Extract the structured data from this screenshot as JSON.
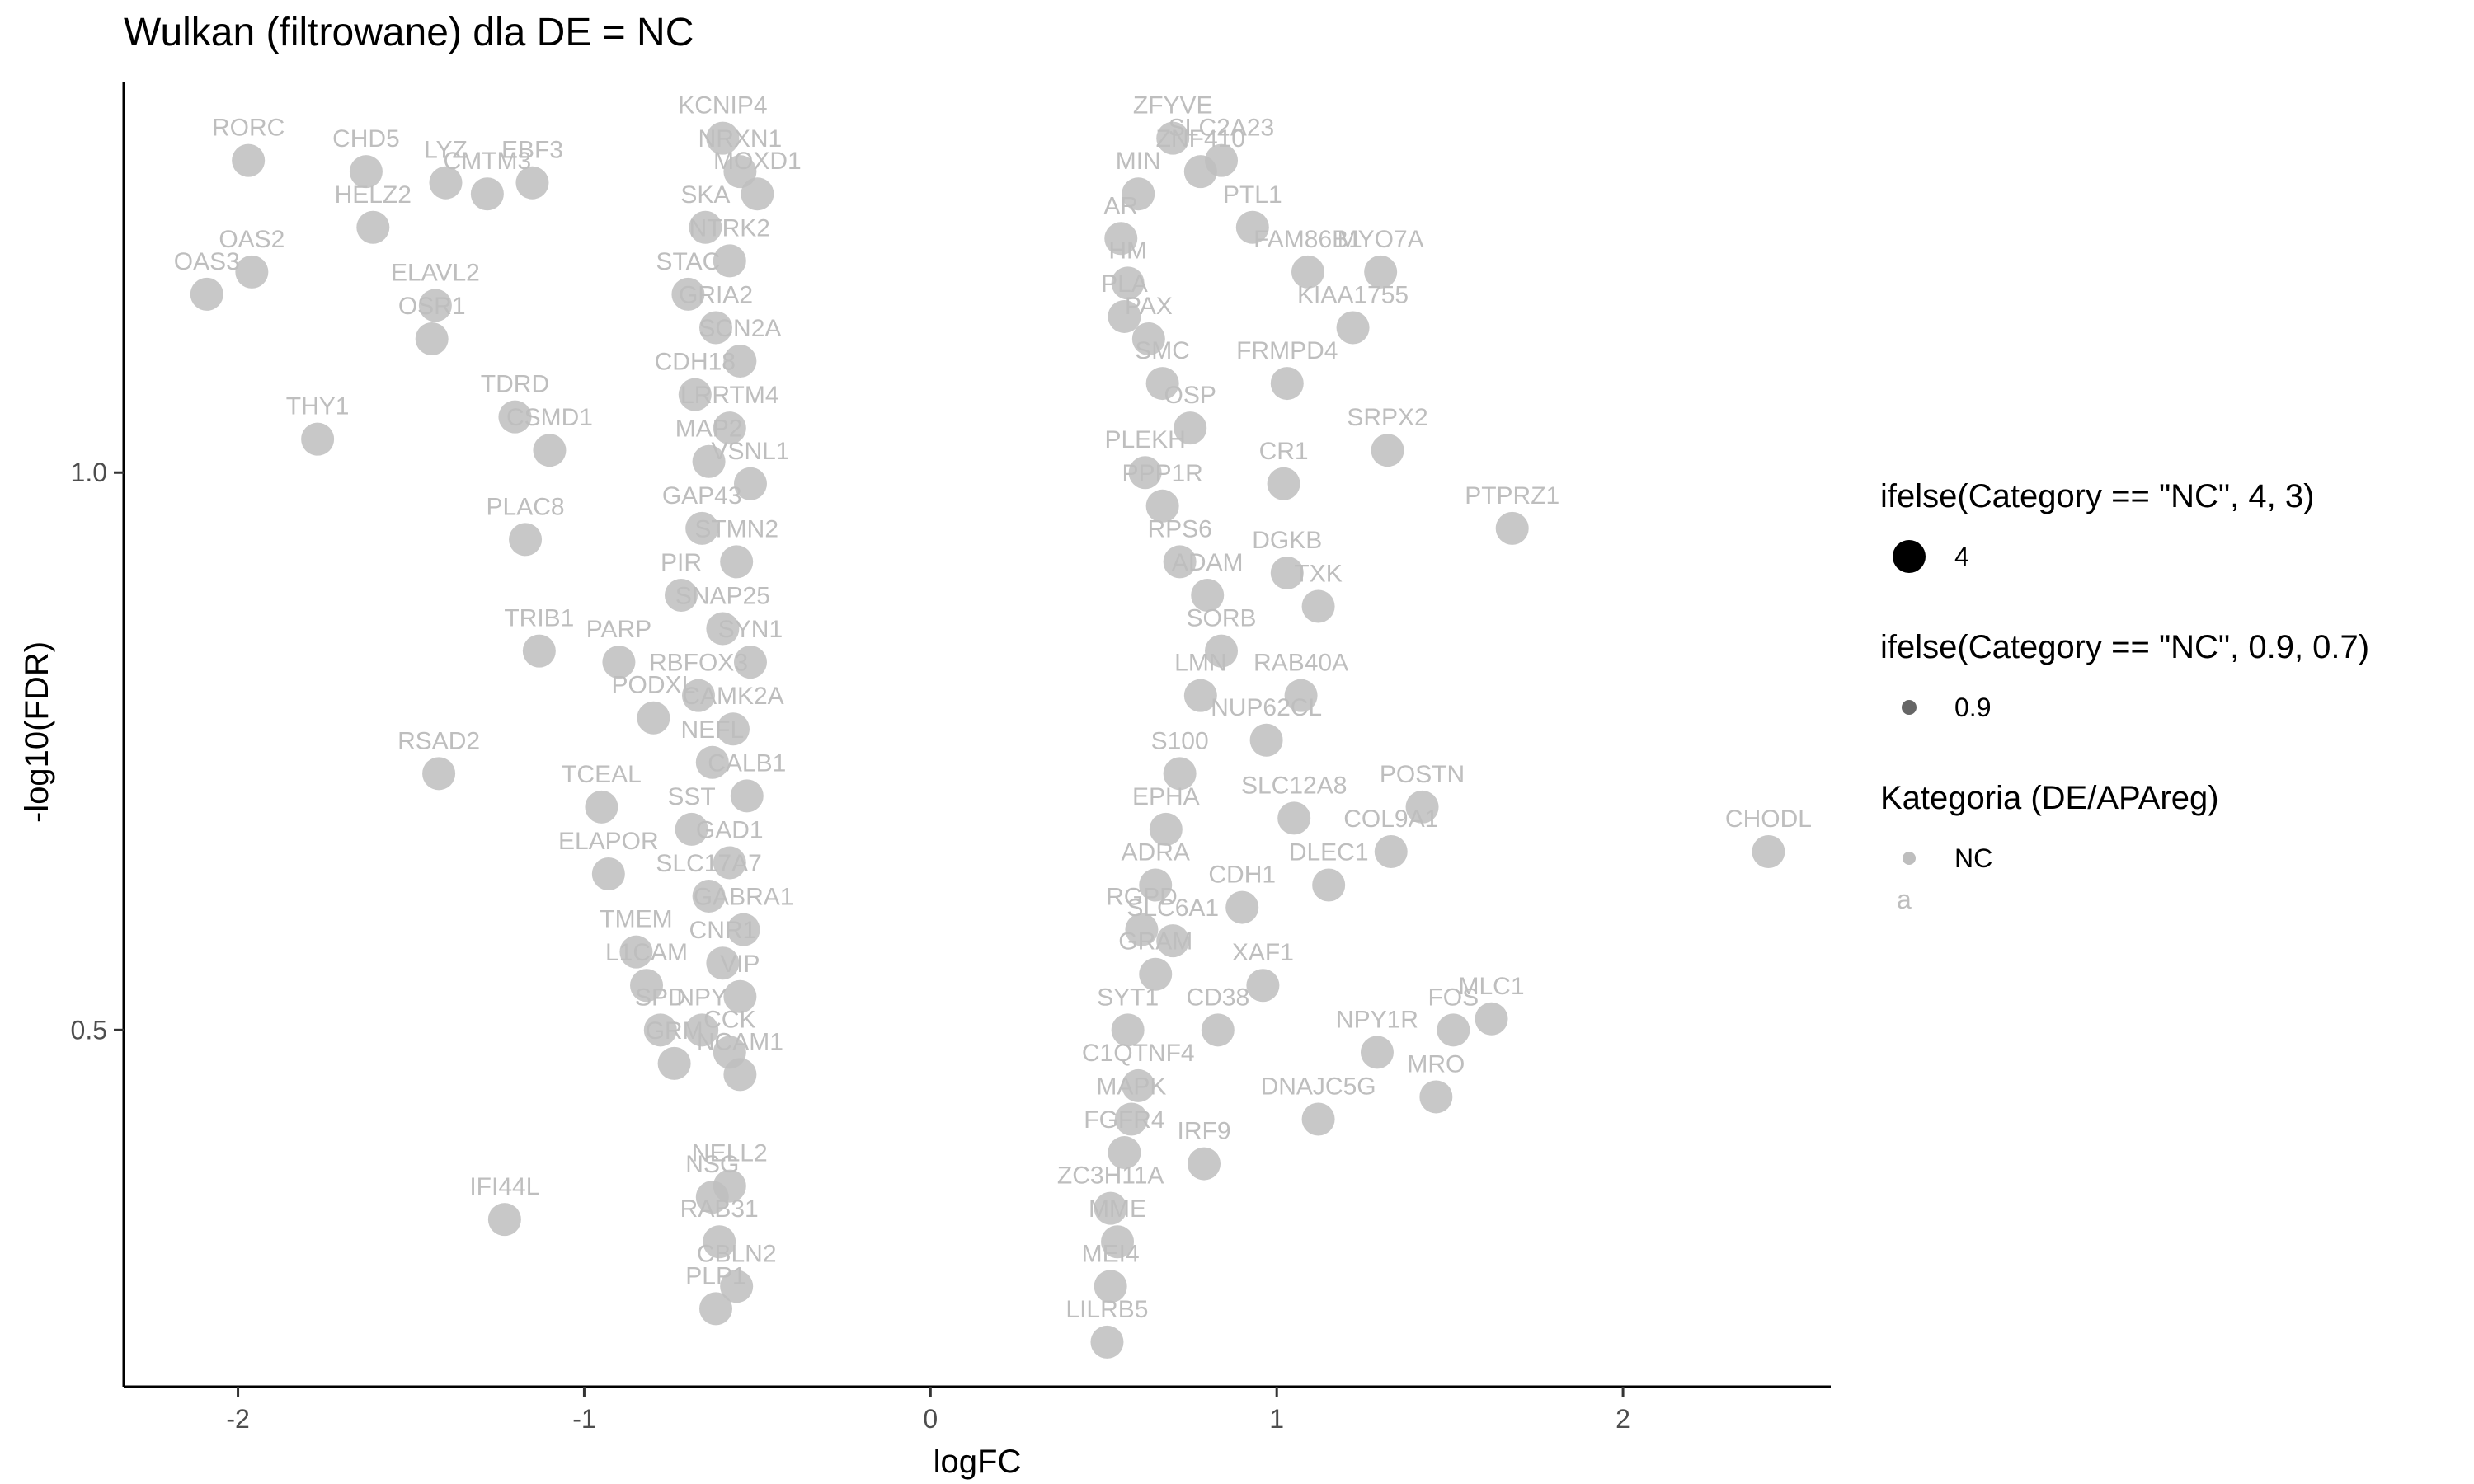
{
  "chart_data": {
    "type": "scatter",
    "title": "Wulkan (filtrowane) dla DE = NC",
    "xlabel": "logFC",
    "ylabel": "-log10(FDR)",
    "xlim": [
      -2.33,
      2.6
    ],
    "ylim": [
      0.18,
      1.35
    ],
    "xticks": [
      -2,
      -1,
      0,
      1,
      2
    ],
    "yticks": [
      0.5,
      1.0
    ],
    "xtick_labels": [
      "-2",
      "-1",
      "0",
      "1",
      "2"
    ],
    "ytick_labels": [
      "0.5",
      "1.0"
    ],
    "grid": false,
    "legend_position": "right",
    "point_color": "#bebebe",
    "points": [
      {
        "x": -1.97,
        "y": 1.28,
        "label": "RORC"
      },
      {
        "x": -1.63,
        "y": 1.27,
        "label": "CHD5"
      },
      {
        "x": -1.4,
        "y": 1.26,
        "label": "LYZ"
      },
      {
        "x": -1.28,
        "y": 1.25,
        "label": "CMTM3"
      },
      {
        "x": -1.61,
        "y": 1.22,
        "label": "HELZ2"
      },
      {
        "x": -1.96,
        "y": 1.18,
        "label": "OAS2"
      },
      {
        "x": -2.09,
        "y": 1.16,
        "label": "OAS3"
      },
      {
        "x": -1.43,
        "y": 1.15,
        "label": "ELAVL2"
      },
      {
        "x": -1.44,
        "y": 1.12,
        "label": "OSR1"
      },
      {
        "x": -1.77,
        "y": 1.03,
        "label": "THY1"
      },
      {
        "x": -1.15,
        "y": 1.26,
        "label": "EBF3"
      },
      {
        "x": -1.2,
        "y": 1.05,
        "label": "TDRD"
      },
      {
        "x": -1.1,
        "y": 1.02,
        "label": "CSMD1"
      },
      {
        "x": -1.17,
        "y": 0.94,
        "label": "PLAC8"
      },
      {
        "x": -1.13,
        "y": 0.84,
        "label": "TRIB1"
      },
      {
        "x": -1.42,
        "y": 0.73,
        "label": "RSAD2"
      },
      {
        "x": -1.23,
        "y": 0.33,
        "label": "IFI44L"
      },
      {
        "x": -0.93,
        "y": 0.64,
        "label": "ELAPOR"
      },
      {
        "x": -0.85,
        "y": 0.57,
        "label": "TMEM"
      },
      {
        "x": -0.74,
        "y": 0.47,
        "label": "GRM"
      },
      {
        "x": -0.63,
        "y": 0.35,
        "label": "NSG"
      },
      {
        "x": -0.61,
        "y": 0.31,
        "label": "RAB31"
      },
      {
        "x": -0.56,
        "y": 0.27,
        "label": "CBLN2"
      },
      {
        "x": -0.62,
        "y": 0.25,
        "label": "PLP1"
      },
      {
        "x": -0.58,
        "y": 0.36,
        "label": "NELL2"
      },
      {
        "x": -0.55,
        "y": 0.46,
        "label": "NCAM1"
      },
      {
        "x": -0.9,
        "y": 0.83,
        "label": "PARP"
      },
      {
        "x": -0.8,
        "y": 0.78,
        "label": "PODXL"
      },
      {
        "x": -0.95,
        "y": 0.7,
        "label": "TCEAL"
      },
      {
        "x": -0.82,
        "y": 0.54,
        "label": "L1CAM"
      },
      {
        "x": -0.78,
        "y": 0.5,
        "label": "SPD"
      },
      {
        "x": 0.51,
        "y": 0.22,
        "label": "LILRB5"
      },
      {
        "x": 0.52,
        "y": 0.27,
        "label": "MEI4"
      },
      {
        "x": 0.54,
        "y": 0.31,
        "label": "MME"
      },
      {
        "x": 0.52,
        "y": 0.34,
        "label": "ZC3H11A"
      },
      {
        "x": 0.56,
        "y": 0.39,
        "label": "FGFR4"
      },
      {
        "x": 0.58,
        "y": 0.42,
        "label": "MAPK"
      },
      {
        "x": 0.79,
        "y": 0.38,
        "label": "IRF9"
      },
      {
        "x": 0.6,
        "y": 0.45,
        "label": "C1QTNF4"
      },
      {
        "x": 0.57,
        "y": 0.5,
        "label": "SYT1"
      },
      {
        "x": 0.65,
        "y": 0.55,
        "label": "GRAM"
      },
      {
        "x": 0.83,
        "y": 0.5,
        "label": "CD38"
      },
      {
        "x": 0.96,
        "y": 0.54,
        "label": "XAF1"
      },
      {
        "x": 0.9,
        "y": 0.61,
        "label": "CDH1"
      },
      {
        "x": 1.15,
        "y": 0.63,
        "label": "DLEC1"
      },
      {
        "x": 1.12,
        "y": 0.42,
        "label": "DNAJC5G"
      },
      {
        "x": 1.29,
        "y": 0.48,
        "label": "NPY1R"
      },
      {
        "x": 1.46,
        "y": 0.44,
        "label": "MRO"
      },
      {
        "x": 1.51,
        "y": 0.5,
        "label": "FOS"
      },
      {
        "x": 1.62,
        "y": 0.51,
        "label": "MLC1"
      },
      {
        "x": 1.33,
        "y": 0.66,
        "label": "COL9A1"
      },
      {
        "x": 1.42,
        "y": 0.7,
        "label": "POSTN"
      },
      {
        "x": 1.05,
        "y": 0.69,
        "label": "SLC12A8"
      },
      {
        "x": 2.42,
        "y": 0.66,
        "label": "CHODL"
      },
      {
        "x": 1.68,
        "y": 0.95,
        "label": "PTPRZ1"
      },
      {
        "x": 1.32,
        "y": 1.02,
        "label": "SRPX2"
      },
      {
        "x": 1.02,
        "y": 0.99,
        "label": "CR1"
      },
      {
        "x": 1.12,
        "y": 0.88,
        "label": "TXK"
      },
      {
        "x": 1.03,
        "y": 0.91,
        "label": "DGKB"
      },
      {
        "x": 1.07,
        "y": 0.8,
        "label": "RAB40A"
      },
      {
        "x": 0.97,
        "y": 0.76,
        "label": "NUP62CL"
      },
      {
        "x": 1.03,
        "y": 1.08,
        "label": "FRMPD4"
      },
      {
        "x": 1.09,
        "y": 1.18,
        "label": "FAM86B1"
      },
      {
        "x": 1.3,
        "y": 1.18,
        "label": "MYO7A"
      },
      {
        "x": 1.22,
        "y": 1.13,
        "label": "KIAA1755"
      },
      {
        "x": 0.93,
        "y": 1.22,
        "label": "PTL1"
      },
      {
        "x": 0.84,
        "y": 1.28,
        "label": "SLC2A23"
      },
      {
        "x": 0.7,
        "y": 1.3,
        "label": "ZFYVE"
      },
      {
        "x": 0.78,
        "y": 1.27,
        "label": "ZNF410"
      },
      {
        "x": 0.6,
        "y": 1.25,
        "label": "MIN"
      },
      {
        "x": 0.55,
        "y": 1.21,
        "label": "AR"
      },
      {
        "x": 0.57,
        "y": 1.17,
        "label": "HM"
      },
      {
        "x": 0.56,
        "y": 1.14,
        "label": "PLA"
      },
      {
        "x": 0.63,
        "y": 1.12,
        "label": "PAX"
      },
      {
        "x": 0.75,
        "y": 1.04,
        "label": "OSP"
      },
      {
        "x": 0.67,
        "y": 1.08,
        "label": "SMC"
      },
      {
        "x": 0.62,
        "y": 1.0,
        "label": "PLEKH"
      },
      {
        "x": 0.67,
        "y": 0.97,
        "label": "PPP1R"
      },
      {
        "x": 0.72,
        "y": 0.92,
        "label": "RPS6"
      },
      {
        "x": 0.8,
        "y": 0.89,
        "label": "ADAM"
      },
      {
        "x": 0.84,
        "y": 0.84,
        "label": "SORB"
      },
      {
        "x": 0.78,
        "y": 0.8,
        "label": "LMN"
      },
      {
        "x": 0.72,
        "y": 0.73,
        "label": "S100"
      },
      {
        "x": 0.68,
        "y": 0.68,
        "label": "EPHA"
      },
      {
        "x": 0.65,
        "y": 0.63,
        "label": "ADRA"
      },
      {
        "x": 0.7,
        "y": 0.58,
        "label": "SLC6A1"
      },
      {
        "x": 0.61,
        "y": 0.59,
        "label": "RGPD"
      },
      {
        "x": -0.6,
        "y": 1.3,
        "label": "KCNIP4"
      },
      {
        "x": -0.55,
        "y": 1.27,
        "label": "NRXN1"
      },
      {
        "x": -0.5,
        "y": 1.25,
        "label": "MOXD1"
      },
      {
        "x": -0.65,
        "y": 1.22,
        "label": "SKA"
      },
      {
        "x": -0.58,
        "y": 1.19,
        "label": "NTRK2"
      },
      {
        "x": -0.7,
        "y": 1.16,
        "label": "STAC"
      },
      {
        "x": -0.62,
        "y": 1.13,
        "label": "GRIA2"
      },
      {
        "x": -0.55,
        "y": 1.1,
        "label": "SCN2A"
      },
      {
        "x": -0.68,
        "y": 1.07,
        "label": "CDH18"
      },
      {
        "x": -0.58,
        "y": 1.04,
        "label": "LRRTM4"
      },
      {
        "x": -0.64,
        "y": 1.01,
        "label": "MAP2"
      },
      {
        "x": -0.52,
        "y": 0.99,
        "label": "VSNL1"
      },
      {
        "x": -0.66,
        "y": 0.95,
        "label": "GAP43"
      },
      {
        "x": -0.56,
        "y": 0.92,
        "label": "STMN2"
      },
      {
        "x": -0.72,
        "y": 0.89,
        "label": "PIR"
      },
      {
        "x": -0.6,
        "y": 0.86,
        "label": "SNAP25"
      },
      {
        "x": -0.52,
        "y": 0.83,
        "label": "SYN1"
      },
      {
        "x": -0.67,
        "y": 0.8,
        "label": "RBFOX3"
      },
      {
        "x": -0.57,
        "y": 0.77,
        "label": "CAMK2A"
      },
      {
        "x": -0.63,
        "y": 0.74,
        "label": "NEFL"
      },
      {
        "x": -0.53,
        "y": 0.71,
        "label": "CALB1"
      },
      {
        "x": -0.69,
        "y": 0.68,
        "label": "SST"
      },
      {
        "x": -0.58,
        "y": 0.65,
        "label": "GAD1"
      },
      {
        "x": -0.64,
        "y": 0.62,
        "label": "SLC17A7"
      },
      {
        "x": -0.54,
        "y": 0.59,
        "label": "GABRA1"
      },
      {
        "x": -0.6,
        "y": 0.56,
        "label": "CNR1"
      },
      {
        "x": -0.55,
        "y": 0.53,
        "label": "VIP"
      },
      {
        "x": -0.66,
        "y": 0.5,
        "label": "NPY"
      },
      {
        "x": -0.58,
        "y": 0.48,
        "label": "CCK"
      }
    ]
  },
  "legend": {
    "size_title": "ifelse(Category == \"NC\", 4, 3)",
    "size_label": "4",
    "alpha_title": "ifelse(Category == \"NC\", 0.9, 0.7)",
    "alpha_label": "0.9",
    "category_title": "Kategoria (DE/APAreg)",
    "category_label": "NC",
    "category_text_key": "a"
  }
}
